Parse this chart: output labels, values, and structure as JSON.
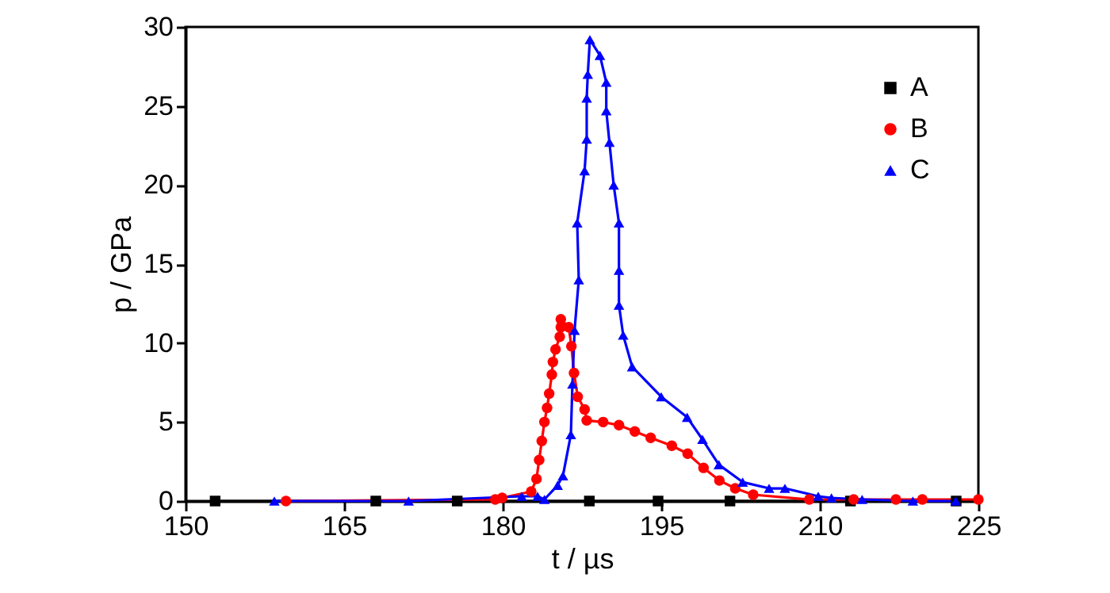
{
  "chart_data": {
    "type": "line",
    "xlabel": "t / µs",
    "ylabel": "p / GPa",
    "xlim": [
      150,
      225
    ],
    "xticks": [
      150,
      165,
      180,
      195,
      210,
      225
    ],
    "ylim": [
      0,
      30
    ],
    "yticks": [
      0,
      5,
      10,
      15,
      20,
      25,
      30
    ],
    "grid": false,
    "legend": "top right",
    "line_style": "solid",
    "series": [
      {
        "name": "A",
        "color": "#000000",
        "marker": "square",
        "x": [
          152.8,
          168,
          175.7,
          188.2,
          194.7,
          201.5,
          212.9,
          222.9
        ],
        "values": [
          0,
          0,
          0,
          0,
          0,
          0,
          0,
          0
        ]
      },
      {
        "name": "B",
        "color": "#ff0000",
        "marker": "circle",
        "x": [
          159.5,
          179.3,
          179.95,
          182.7,
          183.2,
          183.45,
          183.7,
          183.95,
          184.2,
          184.4,
          184.65,
          184.75,
          185.0,
          185.4,
          185.5,
          185.5,
          186.25,
          186.5,
          186.75,
          187.1,
          187.75,
          187.95,
          189.5,
          191.0,
          192.5,
          194.0,
          196.0,
          197.5,
          199.0,
          200.5,
          202.0,
          203.7,
          209,
          213.2,
          217.2,
          219.7,
          225
        ],
        "values": [
          0,
          0.1,
          0.2,
          0.6,
          1.4,
          2.6,
          3.8,
          5.0,
          5.9,
          6.8,
          8.0,
          8.8,
          9.6,
          10.4,
          11.0,
          11.5,
          11.0,
          9.8,
          8.1,
          6.6,
          5.8,
          5.1,
          5.0,
          4.8,
          4.4,
          4.0,
          3.5,
          3.0,
          2.1,
          1.3,
          0.8,
          0.4,
          0.1,
          0.1,
          0.1,
          0.1,
          0.1
        ]
      },
      {
        "name": "C",
        "color": "#0000ff",
        "marker": "triangle",
        "x": [
          158.4,
          171.1,
          181.8,
          183.3,
          183.95,
          185.2,
          185.7,
          186.45,
          186.6,
          186.8,
          187.2,
          187.05,
          187.75,
          187.95,
          187.95,
          188.05,
          188.25,
          189.2,
          189.8,
          189.8,
          190.1,
          190.5,
          191.0,
          191.0,
          191.0,
          191.4,
          192.25,
          195.0,
          197.45,
          198.9,
          200.45,
          202.7,
          205.2,
          206.7,
          209.85,
          211.1,
          214,
          218.8,
          222.85
        ],
        "values": [
          0,
          0,
          0.3,
          0.3,
          0.1,
          1.0,
          1.6,
          4.2,
          7.4,
          10.8,
          14.0,
          17.6,
          20.9,
          22.9,
          25.5,
          27.0,
          29.2,
          28.2,
          26.5,
          24.7,
          22.7,
          20.0,
          17.6,
          14.6,
          12.4,
          10.5,
          8.5,
          6.6,
          5.3,
          3.9,
          2.3,
          1.2,
          0.8,
          0.8,
          0.3,
          0.2,
          0.1,
          0,
          0
        ]
      }
    ]
  }
}
